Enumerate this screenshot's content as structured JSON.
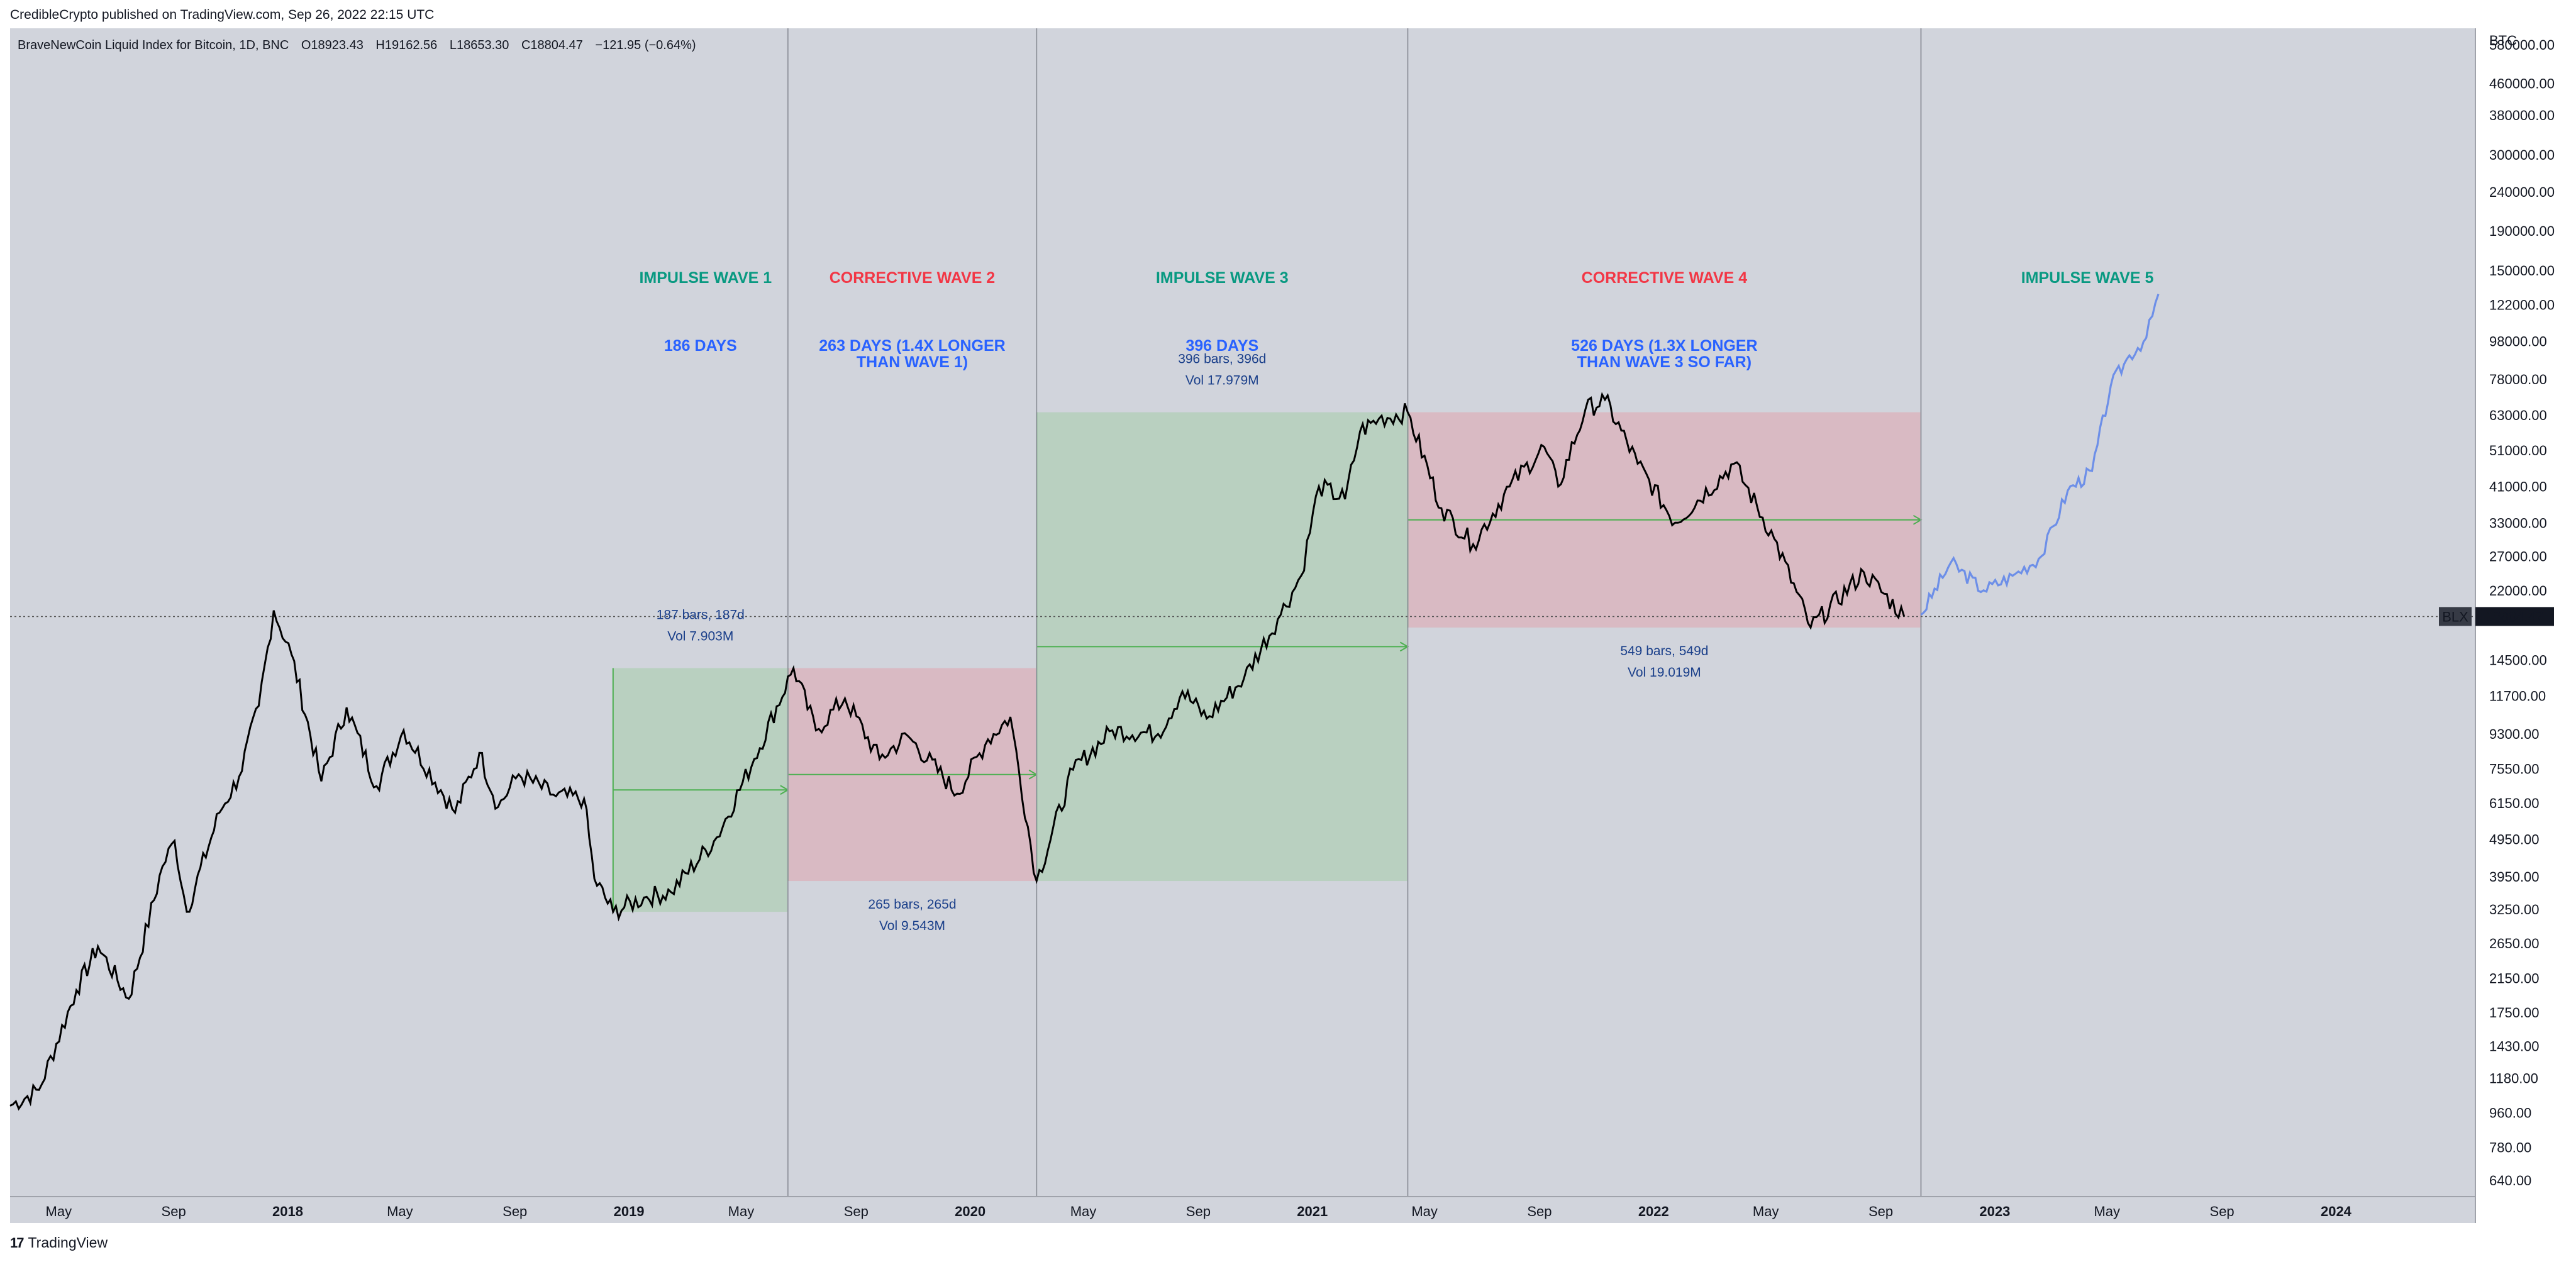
{
  "header": {
    "published": "CredibleCrypto published on TradingView.com, Sep 26, 2022 22:15 UTC"
  },
  "legend": {
    "symbol": "BraveNewCoin Liquid Index for Bitcoin, 1D, BNC",
    "open": "O18923.43",
    "high": "H19162.56",
    "low": "L18653.30",
    "close": "C18804.47",
    "change": "−121.95 (−0.64%)"
  },
  "footer": {
    "logo": "17",
    "brand": "TradingView"
  },
  "price_axis": {
    "currency": "BTC",
    "ticks": [
      "580000.00",
      "460000.00",
      "380000.00",
      "300000.00",
      "240000.00",
      "190000.00",
      "150000.00",
      "122000.00",
      "98000.00",
      "78000.00",
      "63000.00",
      "51000.00",
      "41000.00",
      "33000.00",
      "27000.00",
      "22000.00",
      "14500.00",
      "11700.00",
      "9300.00",
      "7550.00",
      "6150.00",
      "4950.00",
      "3950.00",
      "3250.00",
      "2650.00",
      "2150.00",
      "1750.00",
      "1430.00",
      "1180.00",
      "960.00",
      "780.00",
      "640.00"
    ],
    "current_symbol": "BLX",
    "current_price": "18804.47"
  },
  "time_axis": {
    "ticks": [
      {
        "label": "May",
        "bold": false
      },
      {
        "label": "Sep",
        "bold": false
      },
      {
        "label": "2018",
        "bold": true
      },
      {
        "label": "May",
        "bold": false
      },
      {
        "label": "Sep",
        "bold": false
      },
      {
        "label": "2019",
        "bold": true
      },
      {
        "label": "May",
        "bold": false
      },
      {
        "label": "Sep",
        "bold": false
      },
      {
        "label": "2020",
        "bold": true
      },
      {
        "label": "May",
        "bold": false
      },
      {
        "label": "Sep",
        "bold": false
      },
      {
        "label": "2021",
        "bold": true
      },
      {
        "label": "May",
        "bold": false
      },
      {
        "label": "Sep",
        "bold": false
      },
      {
        "label": "2022",
        "bold": true
      },
      {
        "label": "May",
        "bold": false
      },
      {
        "label": "Sep",
        "bold": false
      },
      {
        "label": "2023",
        "bold": true
      },
      {
        "label": "May",
        "bold": false
      },
      {
        "label": "Sep",
        "bold": false
      },
      {
        "label": "2024",
        "bold": true
      }
    ]
  },
  "waves": [
    {
      "title": "IMPULSE WAVE 1",
      "title_color": "#089981",
      "days": [
        "186 DAYS"
      ],
      "stats": [
        "187 bars, 187d",
        "Vol 7.903M"
      ],
      "box": {
        "start": "2018-12-15",
        "end": "2019-06-20",
        "low": 3200,
        "high": 13800
      },
      "fill": "green"
    },
    {
      "title": "CORRECTIVE WAVE 2",
      "title_color": "#f23645",
      "days": [
        "263 DAYS (1.4X LONGER",
        "THAN WAVE 1)"
      ],
      "stats": [
        "265 bars, 265d",
        "Vol 9.543M"
      ],
      "box": {
        "start": "2019-06-20",
        "end": "2020-03-12",
        "low": 3850,
        "high": 13800
      },
      "fill": "red"
    },
    {
      "title": "IMPULSE WAVE 3",
      "title_color": "#089981",
      "days": [
        "396 DAYS"
      ],
      "stats": [
        "396 bars, 396d",
        "Vol 17.979M"
      ],
      "box": {
        "start": "2020-03-12",
        "end": "2021-04-13",
        "low": 3850,
        "high": 64000
      },
      "fill": "green"
    },
    {
      "title": "CORRECTIVE WAVE 4",
      "title_color": "#f23645",
      "days": [
        "526 DAYS (1.3X LONGER",
        "THAN WAVE 3 SO FAR)"
      ],
      "stats": [
        "549 bars, 549d",
        "Vol 19.019M"
      ],
      "box": {
        "start": "2021-04-13",
        "end": "2022-10-14",
        "low": 17600,
        "high": 64000
      },
      "fill": "red"
    },
    {
      "title": "IMPULSE WAVE 5",
      "title_color": "#089981",
      "days": [],
      "stats": [],
      "box": null,
      "fill": null
    }
  ],
  "chart_data": {
    "type": "line",
    "title": "BraveNewCoin Liquid Index for Bitcoin, 1D, BNC",
    "y_scale": "log",
    "ylim": [
      580,
      640000
    ],
    "xlim": [
      "2017-03-10",
      "2024-05-25"
    ],
    "grid": false,
    "series": [
      {
        "color": "#000000",
        "x": [
          "2017-03-10",
          "2017-04-10",
          "2017-05-20",
          "2017-06-12",
          "2017-07-15",
          "2017-08-20",
          "2017-09-02",
          "2017-09-15",
          "2017-10-20",
          "2017-11-10",
          "2017-12-01",
          "2017-12-17",
          "2018-01-05",
          "2018-02-06",
          "2018-03-05",
          "2018-04-06",
          "2018-05-05",
          "2018-06-29",
          "2018-07-25",
          "2018-08-14",
          "2018-09-05",
          "2018-10-15",
          "2018-11-14",
          "2018-11-25",
          "2018-12-15",
          "2019-01-20",
          "2019-02-15",
          "2019-04-05",
          "2019-05-15",
          "2019-06-26",
          "2019-07-20",
          "2019-08-20",
          "2019-09-26",
          "2019-10-26",
          "2019-12-18",
          "2020-01-20",
          "2020-02-13",
          "2020-03-12",
          "2020-04-20",
          "2020-06-01",
          "2020-07-20",
          "2020-08-15",
          "2020-09-10",
          "2020-10-20",
          "2020-11-25",
          "2020-12-20",
          "2021-01-08",
          "2021-02-05",
          "2021-02-21",
          "2021-03-13",
          "2021-04-13",
          "2021-05-19",
          "2021-06-22",
          "2021-07-31",
          "2021-09-06",
          "2021-09-21",
          "2021-10-20",
          "2021-11-10",
          "2021-12-15",
          "2022-01-24",
          "2022-03-28",
          "2022-05-10",
          "2022-06-18",
          "2022-08-14",
          "2022-09-26"
        ],
        "y": [
          1000,
          1100,
          2000,
          2600,
          1900,
          4200,
          4900,
          3200,
          5800,
          7200,
          11000,
          19500,
          15000,
          7000,
          10900,
          6800,
          9500,
          5800,
          8300,
          6000,
          7300,
          6400,
          6300,
          3900,
          3200,
          3500,
          3600,
          5000,
          8000,
          13800,
          9500,
          11500,
          8000,
          9200,
          6500,
          9000,
          10300,
          3850,
          7500,
          9500,
          9300,
          12000,
          10200,
          13000,
          18500,
          24000,
          41000,
          38000,
          57000,
          61500,
          64000,
          36000,
          29000,
          41000,
          52000,
          41000,
          65000,
          69000,
          47000,
          33000,
          47000,
          30000,
          17600,
          24500,
          18804
        ]
      },
      {
        "color": "#6d8fe8",
        "x": [
          "2022-10-14",
          "2022-11-15",
          "2022-12-20",
          "2023-01-20",
          "2023-02-20",
          "2023-03-20",
          "2023-04-15",
          "2023-05-05",
          "2023-05-25",
          "2023-06-12",
          "2023-06-25"
        ],
        "y": [
          19000,
          26000,
          22000,
          24000,
          27000,
          40000,
          45000,
          75000,
          90000,
          100000,
          130000
        ]
      }
    ],
    "annotations": [
      "IMPULSE WAVE 1",
      "186 DAYS",
      "CORRECTIVE WAVE 2",
      "263 DAYS (1.4X LONGER THAN WAVE 1)",
      "IMPULSE WAVE 3",
      "396 DAYS",
      "CORRECTIVE WAVE 4",
      "526 DAYS (1.3X LONGER THAN WAVE 3 SO FAR)",
      "IMPULSE WAVE 5"
    ]
  }
}
